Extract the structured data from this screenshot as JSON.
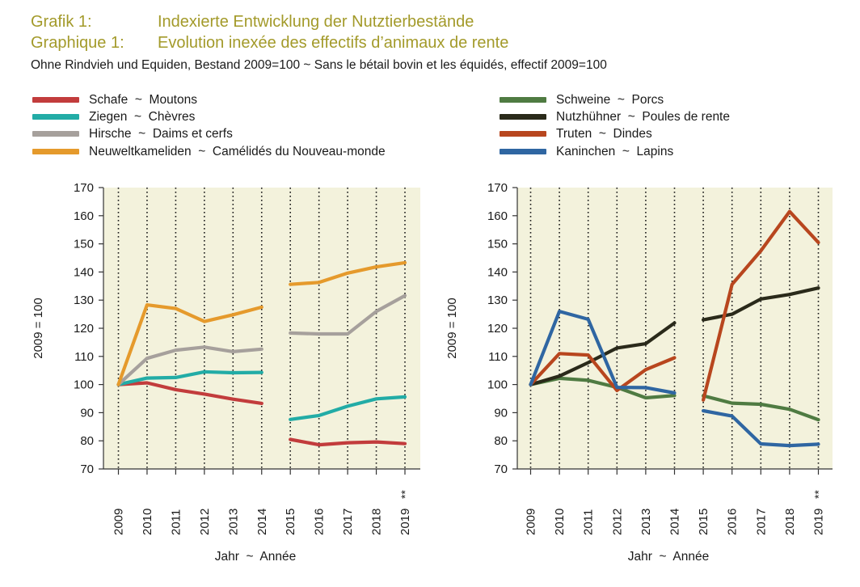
{
  "header": {
    "line1_label": "Grafik 1:",
    "line1_text": "Indexierte Entwicklung der Nutztierbestände",
    "line2_label": "Graphique 1:",
    "line2_text": "Evolution inexée des effectifs d’animaux de rente",
    "subtitle": "Ohne Rindvieh und Equiden, Bestand 2009=100   ~   Sans le bétail bovin et les équidés, effectif 2009=100"
  },
  "colors": {
    "plot_background": "#f3f2dc",
    "schafe": "#c23c3c",
    "ziegen": "#22aca6",
    "hirsche": "#a6a09c",
    "neuweltkameliden": "#e59a2c",
    "schweine": "#4f7b42",
    "nutzhuehner": "#2a2a1a",
    "truten": "#b8461e",
    "kaninchen": "#2f66a2"
  },
  "chart_data": [
    {
      "type": "line",
      "id": "left",
      "xlabel": "Jahr  ~  Année",
      "ylabel": "2009 = 100",
      "ylim": [
        70,
        170
      ],
      "yticks": [
        70,
        80,
        90,
        100,
        110,
        120,
        130,
        140,
        150,
        160,
        170
      ],
      "categories": [
        "2009",
        "2010",
        "2011",
        "2012",
        "2013",
        "2014",
        "2015",
        "2016",
        "2017",
        "2018",
        "2019"
      ],
      "last_tick_mark": "**",
      "grid": "vertical dotted",
      "break_between": [
        "2014",
        "2015"
      ],
      "series": [
        {
          "name": "Schafe  ~  Moutons",
          "color_key": "schafe",
          "values": [
            100,
            100.6,
            98.2,
            96.6,
            94.8,
            93.3,
            80.5,
            78.6,
            79.3,
            79.6,
            79.0
          ]
        },
        {
          "name": "Ziegen  ~  Chèvres",
          "color_key": "ziegen",
          "values": [
            100,
            102.3,
            102.5,
            104.5,
            104.2,
            104.3,
            87.6,
            89.0,
            92.3,
            94.9,
            95.6
          ]
        },
        {
          "name": "Hirsche  ~  Daims et cerfs",
          "color_key": "hirsche",
          "values": [
            100,
            109.3,
            112.2,
            113.3,
            111.7,
            112.6,
            118.3,
            118.0,
            118.0,
            126.0,
            131.6
          ]
        },
        {
          "name": "Neuweltkameliden  ~  Camélidés du Nouveau-monde",
          "color_key": "neuweltkameliden",
          "values": [
            100,
            128.3,
            127.0,
            122.4,
            124.8,
            127.5,
            135.6,
            136.3,
            139.6,
            141.8,
            143.3
          ]
        }
      ]
    },
    {
      "type": "line",
      "id": "right",
      "xlabel": "Jahr  ~  Année",
      "ylabel": "2009 = 100",
      "ylim": [
        70,
        170
      ],
      "yticks": [
        70,
        80,
        90,
        100,
        110,
        120,
        130,
        140,
        150,
        160,
        170
      ],
      "categories": [
        "2009",
        "2010",
        "2011",
        "2012",
        "2013",
        "2014",
        "2015",
        "2016",
        "2017",
        "2018",
        "2019"
      ],
      "last_tick_mark": "**",
      "grid": "vertical dotted",
      "break_between": [
        "2014",
        "2015"
      ],
      "series": [
        {
          "name": "Schweine  ~  Porcs",
          "color_key": "schweine",
          "values": [
            100,
            102.2,
            101.5,
            99.0,
            95.3,
            96.1,
            96.0,
            93.4,
            93.0,
            91.2,
            87.5
          ]
        },
        {
          "name": "Nutzhühner  ~  Poules de rente",
          "color_key": "nutzhuehner",
          "values": [
            100,
            103.0,
            107.8,
            113.0,
            114.5,
            121.9,
            123.0,
            125.0,
            130.4,
            132.0,
            134.3
          ]
        },
        {
          "name": "Truten  ~  Dindes",
          "color_key": "truten",
          "values": [
            100,
            111.0,
            110.5,
            97.9,
            105.3,
            109.5,
            94.5,
            135.6,
            147.5,
            161.5,
            150.5
          ]
        },
        {
          "name": "Kaninchen  ~  Lapins",
          "color_key": "kaninchen",
          "values": [
            100,
            126.0,
            123.2,
            99.0,
            98.9,
            97.0,
            90.7,
            88.8,
            78.9,
            78.3,
            78.8
          ]
        }
      ]
    }
  ]
}
